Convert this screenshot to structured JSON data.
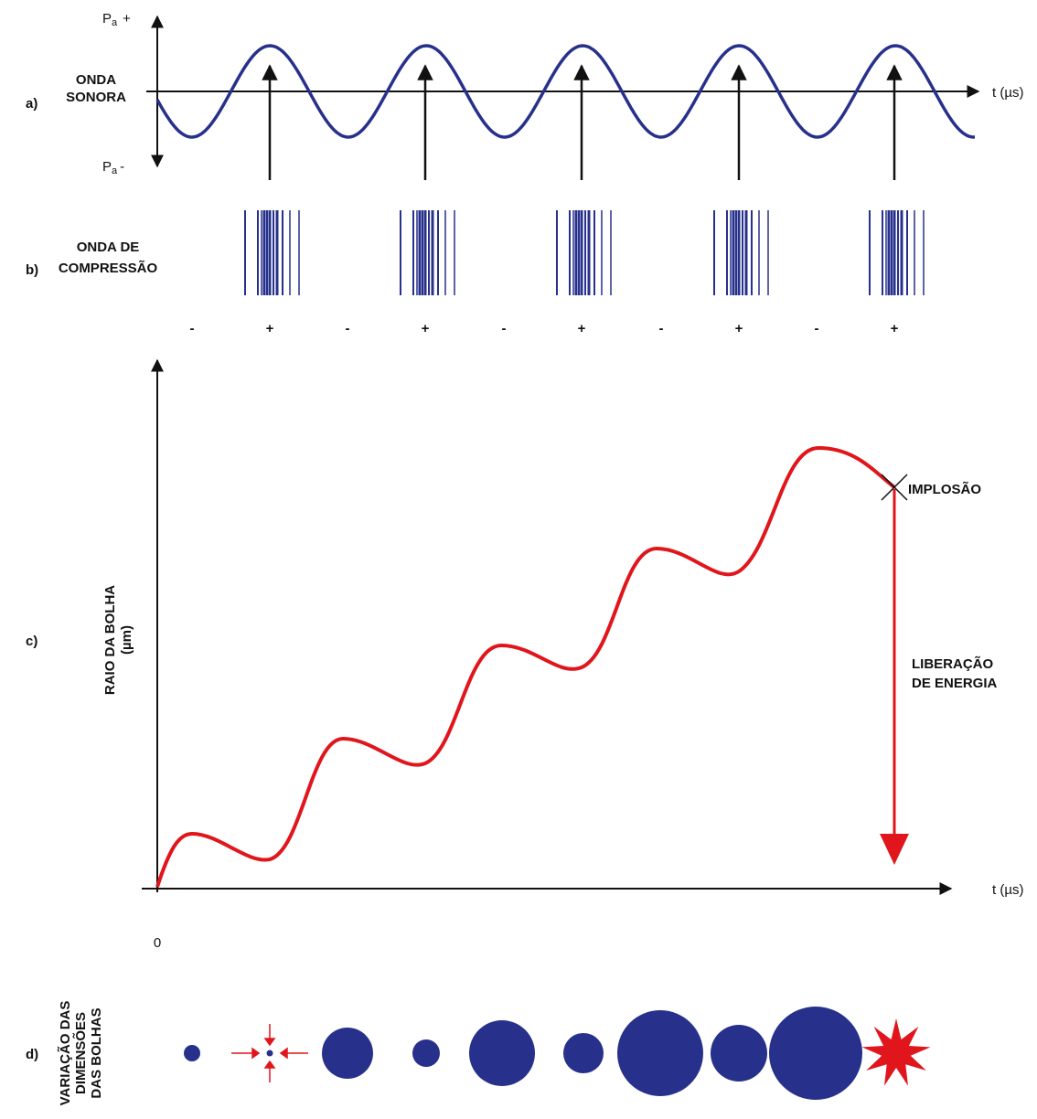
{
  "panel_a": {
    "letter": "a)",
    "label": [
      "ONDA",
      "SONORA"
    ],
    "pressure_plus": {
      "symbol": "P",
      "subscript": "a",
      "sign": "+"
    },
    "pressure_minus": {
      "symbol": "P",
      "subscript": "a",
      "sign": "-"
    },
    "axis_label": "t (µs)"
  },
  "panel_b": {
    "letter": "b)",
    "label": [
      "ONDA DE",
      "COMPRESSÃO"
    ],
    "signs": [
      "-",
      "+",
      "-",
      "+",
      "-",
      "+",
      "-",
      "+",
      "-",
      "+"
    ]
  },
  "panel_c": {
    "letter": "c)",
    "y_label": [
      "RAIO DA BOLHA",
      "(µm)"
    ],
    "implosion": "IMPLOSÃO",
    "energy": [
      "LIBERAÇÃO",
      "DE ENERGIA"
    ],
    "axis_label": "t (µs)",
    "origin": "0"
  },
  "panel_d": {
    "letter": "d)",
    "label": [
      "VARIAÇÃO DAS",
      "DIMENSÕES",
      "DAS BOLHAS"
    ]
  }
}
